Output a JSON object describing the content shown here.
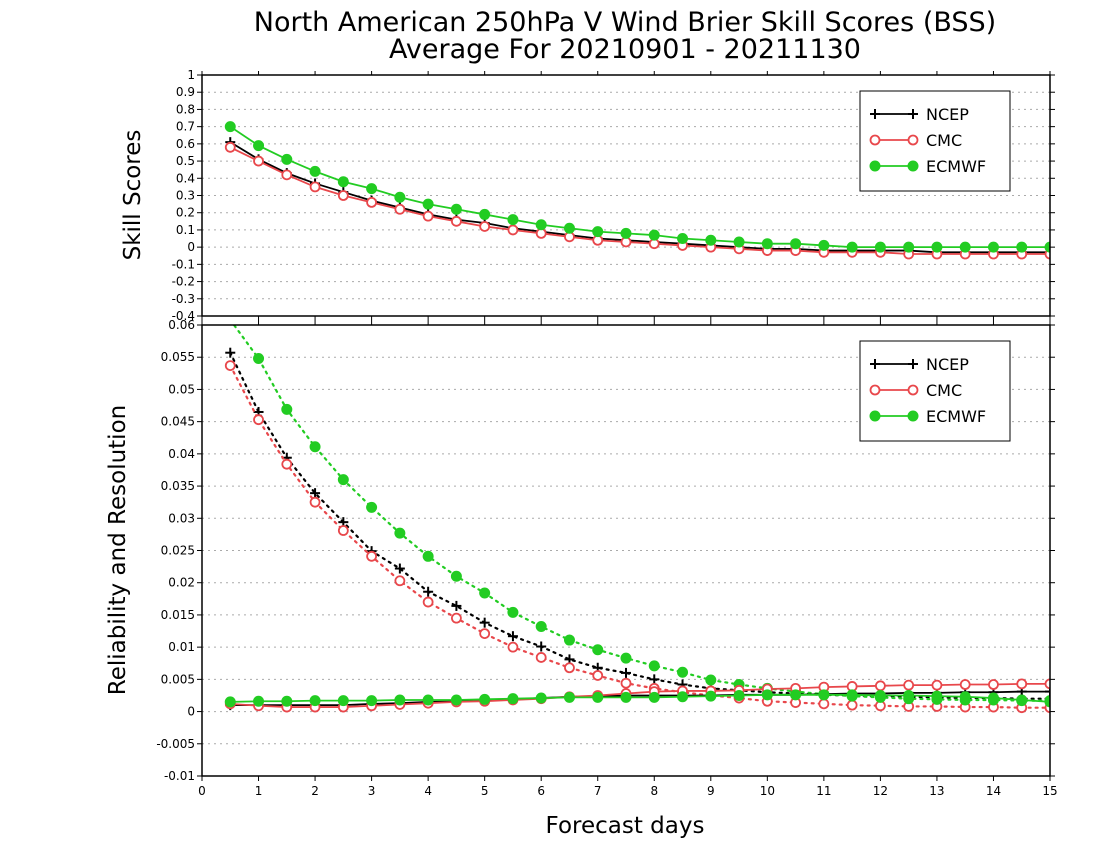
{
  "title_line1": "North American 250hPa V Wind Brier Skill Scores (BSS)",
  "title_line2": "Average For 20210901 - 20211130",
  "xlabel": "Forecast days",
  "colors": {
    "NCEP": "#000000",
    "CMC": "#e8474b",
    "ECMWF": "#22cc22"
  },
  "chart_data": [
    {
      "type": "line",
      "ylabel": "Skill Scores",
      "ylim": [
        -0.4,
        1
      ],
      "xlim": [
        0,
        15
      ],
      "yticks": [
        "1",
        "0.9",
        "0.8",
        "0.7",
        "0.6",
        "0.5",
        "0.4",
        "0.3",
        "0.2",
        "0.1",
        "0",
        "-0.1",
        "-0.2",
        "-0.3",
        "-0.4"
      ],
      "ytick_values": [
        1,
        0.9,
        0.8,
        0.7,
        0.6,
        0.5,
        0.4,
        0.3,
        0.2,
        0.1,
        0,
        -0.1,
        -0.2,
        -0.3,
        -0.4
      ],
      "grid": true,
      "legend": "top-right",
      "x": [
        0.5,
        1,
        1.5,
        2,
        2.5,
        3,
        3.5,
        4,
        4.5,
        5,
        5.5,
        6,
        6.5,
        7,
        7.5,
        8,
        8.5,
        9,
        9.5,
        10,
        10.5,
        11,
        11.5,
        12,
        12.5,
        13,
        13.5,
        14,
        14.5,
        15
      ],
      "series": [
        {
          "name": "NCEP",
          "marker": "plus",
          "style": "solid",
          "values": [
            0.61,
            0.51,
            0.43,
            0.37,
            0.32,
            0.27,
            0.23,
            0.19,
            0.16,
            0.14,
            0.11,
            0.09,
            0.07,
            0.05,
            0.04,
            0.03,
            0.02,
            0.01,
            0.0,
            -0.01,
            -0.01,
            -0.02,
            -0.02,
            -0.02,
            -0.02,
            -0.03,
            -0.03,
            -0.03,
            -0.03,
            -0.03
          ]
        },
        {
          "name": "CMC",
          "marker": "open-circle",
          "style": "solid",
          "values": [
            0.58,
            0.5,
            0.42,
            0.35,
            0.3,
            0.26,
            0.22,
            0.18,
            0.15,
            0.12,
            0.1,
            0.08,
            0.06,
            0.04,
            0.03,
            0.02,
            0.01,
            0.0,
            -0.01,
            -0.02,
            -0.02,
            -0.03,
            -0.03,
            -0.03,
            -0.04,
            -0.04,
            -0.04,
            -0.04,
            -0.04,
            -0.04
          ]
        },
        {
          "name": "ECMWF",
          "marker": "filled-circle",
          "style": "solid",
          "values": [
            0.7,
            0.59,
            0.51,
            0.44,
            0.38,
            0.34,
            0.29,
            0.25,
            0.22,
            0.19,
            0.16,
            0.13,
            0.11,
            0.09,
            0.08,
            0.07,
            0.05,
            0.04,
            0.03,
            0.02,
            0.02,
            0.01,
            0.0,
            0.0,
            0.0,
            0.0,
            0.0,
            0.0,
            0.0,
            0.0
          ]
        }
      ]
    },
    {
      "type": "line",
      "ylabel": "Reliability and Resolution",
      "ylim": [
        -0.01,
        0.06
      ],
      "xlim": [
        0,
        15
      ],
      "yticks": [
        "0.06",
        "0.055",
        "0.05",
        "0.045",
        "0.04",
        "0.035",
        "0.03",
        "0.025",
        "0.02",
        "0.015",
        "0.01",
        "0.005",
        "0",
        "-0.005",
        "-0.01"
      ],
      "ytick_values": [
        0.06,
        0.055,
        0.05,
        0.045,
        0.04,
        0.035,
        0.03,
        0.025,
        0.02,
        0.015,
        0.01,
        0.005,
        0,
        -0.005,
        -0.01
      ],
      "xticks": [
        "0",
        "1",
        "2",
        "3",
        "4",
        "5",
        "6",
        "7",
        "8",
        "9",
        "10",
        "11",
        "12",
        "13",
        "14",
        "15"
      ],
      "grid": true,
      "legend": "top-right",
      "x": [
        0.5,
        1,
        1.5,
        2,
        2.5,
        3,
        3.5,
        4,
        4.5,
        5,
        5.5,
        6,
        6.5,
        7,
        7.5,
        8,
        8.5,
        9,
        9.5,
        10,
        10.5,
        11,
        11.5,
        12,
        12.5,
        13,
        13.5,
        14,
        14.5,
        15
      ],
      "series": [
        {
          "name": "NCEP",
          "component": "reliability",
          "marker": "plus",
          "style": "dotted",
          "values": [
            0.0557,
            0.0465,
            0.0394,
            0.0339,
            0.0294,
            0.0249,
            0.0222,
            0.0186,
            0.0164,
            0.0138,
            0.0117,
            0.0101,
            0.0081,
            0.0068,
            0.006,
            0.005,
            0.0042,
            0.0036,
            0.0033,
            0.003,
            0.0028,
            0.0026,
            0.0025,
            0.0024,
            0.0023,
            0.0022,
            0.0021,
            0.0021,
            0.002,
            0.002
          ]
        },
        {
          "name": "CMC",
          "component": "reliability",
          "marker": "open-circle",
          "style": "dotted",
          "values": [
            0.0537,
            0.0453,
            0.0384,
            0.0325,
            0.0281,
            0.0241,
            0.0203,
            0.017,
            0.0145,
            0.0121,
            0.01,
            0.0084,
            0.0068,
            0.0056,
            0.0044,
            0.0036,
            0.003,
            0.0025,
            0.0021,
            0.0016,
            0.0014,
            0.0012,
            0.001,
            0.0009,
            0.0008,
            0.0008,
            0.0007,
            0.0007,
            0.0006,
            0.0006
          ]
        },
        {
          "name": "ECMWF",
          "component": "reliability",
          "marker": "filled-circle",
          "style": "dotted",
          "values": [
            0.0608,
            0.0548,
            0.0469,
            0.0411,
            0.036,
            0.0317,
            0.0277,
            0.0241,
            0.021,
            0.0184,
            0.0154,
            0.0132,
            0.0111,
            0.0096,
            0.0083,
            0.0071,
            0.0061,
            0.0049,
            0.0042,
            0.0036,
            0.0031,
            0.0027,
            0.0024,
            0.0022,
            0.002,
            0.0019,
            0.0018,
            0.0018,
            0.0017,
            0.0017
          ]
        },
        {
          "name": "NCEP",
          "component": "resolution",
          "marker": "plus",
          "style": "solid",
          "values": [
            0.001,
            0.001,
            0.001,
            0.001,
            0.001,
            0.0012,
            0.0013,
            0.0015,
            0.0016,
            0.0017,
            0.0019,
            0.0021,
            0.0023,
            0.0024,
            0.0025,
            0.0025,
            0.0025,
            0.0025,
            0.0026,
            0.0026,
            0.0026,
            0.0027,
            0.0028,
            0.0028,
            0.0029,
            0.0029,
            0.003,
            0.003,
            0.0031,
            0.0031
          ]
        },
        {
          "name": "CMC",
          "component": "resolution",
          "marker": "open-circle",
          "style": "solid",
          "values": [
            0.0012,
            0.0009,
            0.0007,
            0.0007,
            0.0007,
            0.0009,
            0.0011,
            0.0013,
            0.0015,
            0.0016,
            0.0018,
            0.002,
            0.0023,
            0.0025,
            0.0028,
            0.0031,
            0.0032,
            0.0032,
            0.0033,
            0.0035,
            0.0036,
            0.0038,
            0.0039,
            0.004,
            0.0041,
            0.0041,
            0.0042,
            0.0042,
            0.0043,
            0.0043
          ]
        },
        {
          "name": "ECMWF",
          "component": "resolution",
          "marker": "filled-circle",
          "style": "solid",
          "values": [
            0.0015,
            0.0016,
            0.0016,
            0.0017,
            0.0017,
            0.0017,
            0.0018,
            0.0018,
            0.0018,
            0.0019,
            0.002,
            0.0021,
            0.0022,
            0.0022,
            0.0022,
            0.0022,
            0.0023,
            0.0024,
            0.0025,
            0.0026,
            0.0026,
            0.0026,
            0.0026,
            0.0025,
            0.0025,
            0.0024,
            0.0023,
            0.0021,
            0.0018,
            0.0015
          ]
        }
      ]
    }
  ]
}
